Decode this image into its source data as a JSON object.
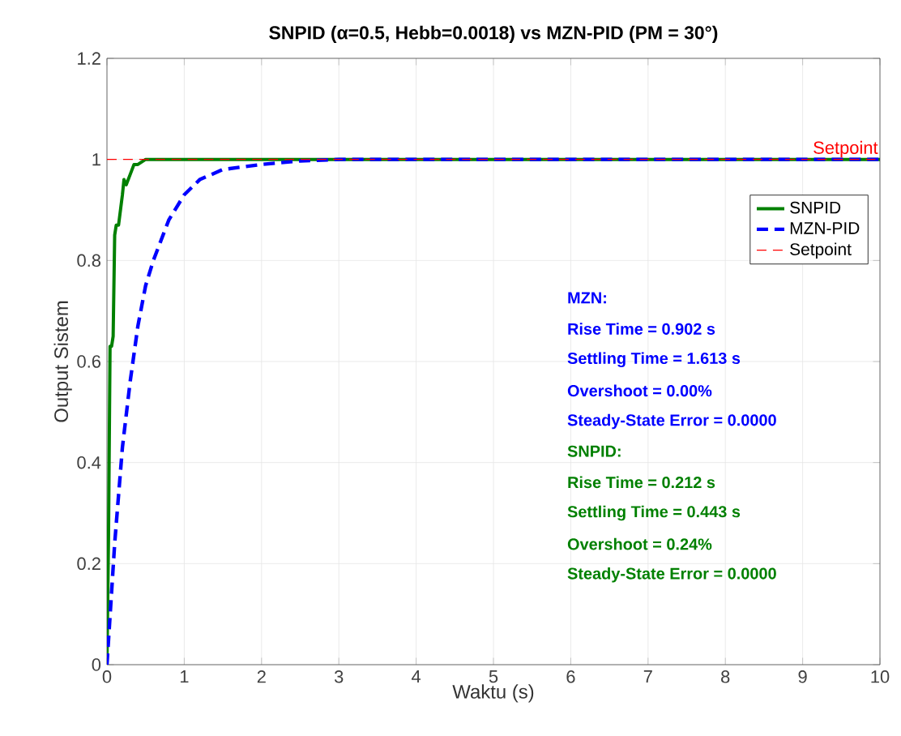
{
  "chart_data": {
    "type": "line",
    "title": "SNPID (α=0.5, Hebb=0.0018) vs MZN-PID (PM = 30°)",
    "xlabel": "Waktu (s)",
    "ylabel": "Output Sistem",
    "xlim": [
      0,
      10
    ],
    "ylim": [
      0,
      1.2
    ],
    "xticks": [
      0,
      1,
      2,
      3,
      4,
      5,
      6,
      7,
      8,
      9,
      10
    ],
    "yticks": [
      0,
      0.2,
      0.4,
      0.6,
      0.8,
      1,
      1.2
    ],
    "grid": true,
    "legend": "right",
    "series": [
      {
        "name": "SNPID",
        "color": "#008000",
        "line_style": "solid",
        "x": [
          0,
          0.02,
          0.04,
          0.06,
          0.08,
          0.1,
          0.12,
          0.15,
          0.2,
          0.22,
          0.25,
          0.3,
          0.35,
          0.4,
          0.5,
          0.6,
          1,
          10
        ],
        "values": [
          0,
          0.25,
          0.63,
          0.63,
          0.65,
          0.85,
          0.87,
          0.87,
          0.93,
          0.96,
          0.95,
          0.97,
          0.99,
          0.99,
          1,
          1,
          1,
          1
        ]
      },
      {
        "name": "MZN-PID",
        "color": "#0000ff",
        "line_style": "dashed",
        "x": [
          0,
          0.1,
          0.2,
          0.3,
          0.4,
          0.5,
          0.6,
          0.8,
          1,
          1.2,
          1.5,
          2,
          2.5,
          3,
          4,
          10
        ],
        "values": [
          0,
          0.24,
          0.43,
          0.56,
          0.67,
          0.75,
          0.8,
          0.88,
          0.93,
          0.96,
          0.98,
          0.99,
          0.997,
          1,
          1,
          1
        ]
      },
      {
        "name": "Setpoint",
        "color": "#ff0000",
        "line_style": "dashed",
        "x": [
          0,
          10
        ],
        "values": [
          1,
          1
        ]
      }
    ],
    "annotations": [
      {
        "text": "Setpoint",
        "x": 10,
        "y": 1
      },
      "MZN:",
      "Rise Time = 0.902 s",
      "Settling Time = 1.613 s",
      "Overshoot = 0.00%",
      "Steady-State Error = 0.0000",
      "SNPID:",
      "Rise Time = 0.212 s",
      "Settling Time = 0.443 s",
      "Overshoot = 0.24%",
      "Steady-State Error = 0.0000"
    ]
  }
}
